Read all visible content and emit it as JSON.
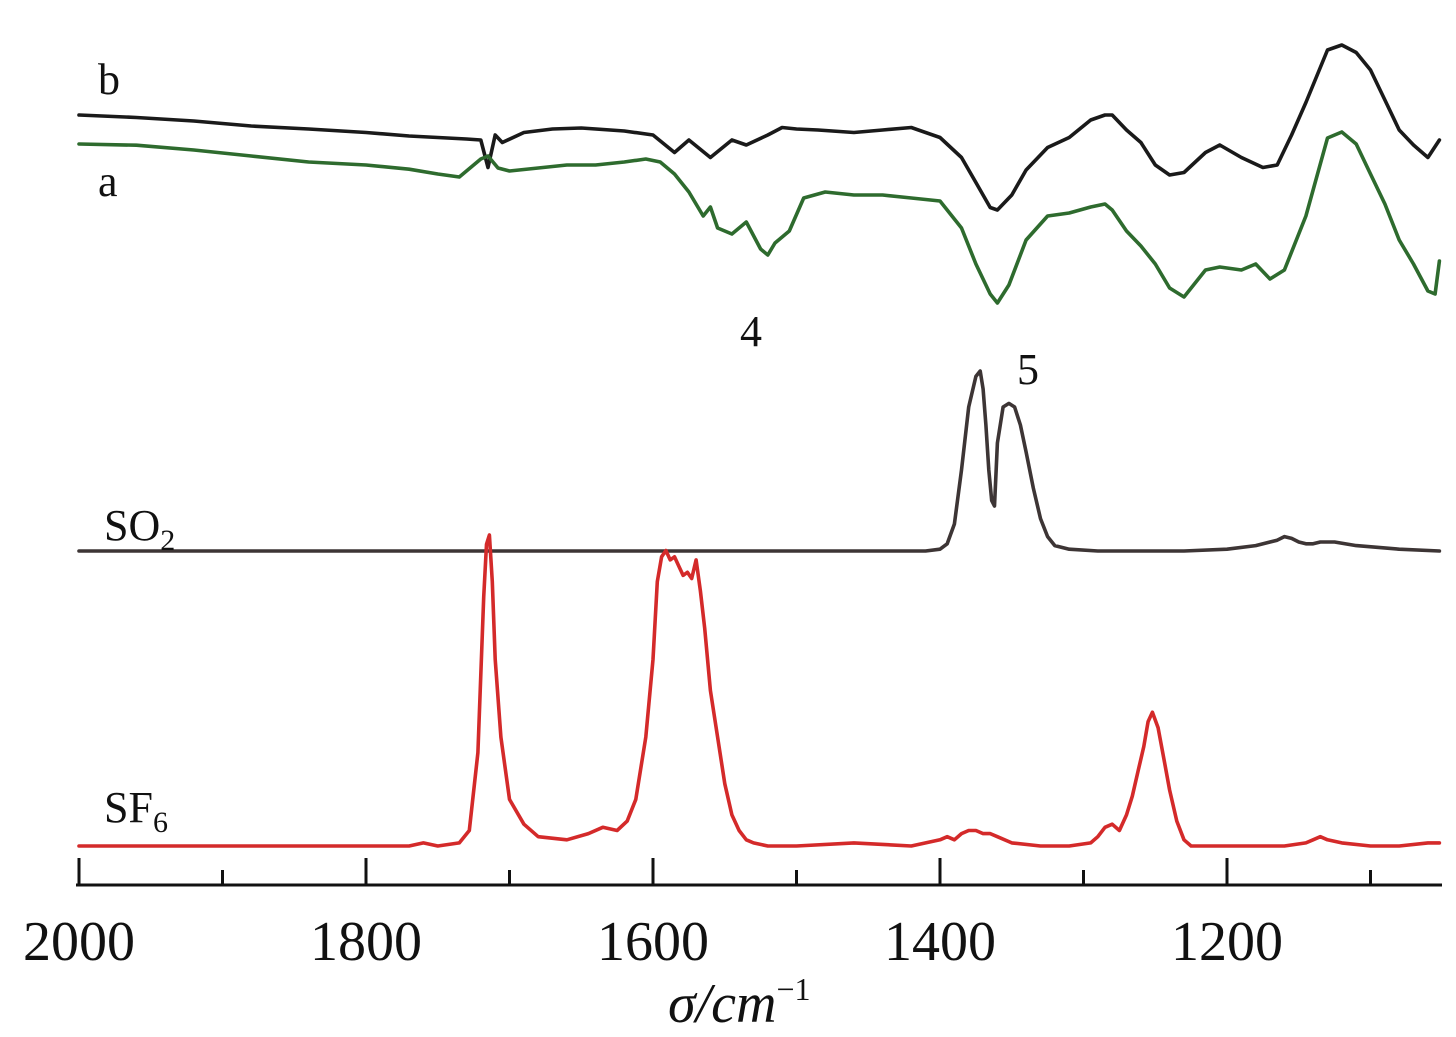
{
  "chart_data": {
    "type": "line",
    "title": "",
    "xlabel": "σ/cm",
    "xlabel_superscript": "−1",
    "ylabel": "",
    "xlim": [
      2000,
      1050
    ],
    "x_reversed": true,
    "x_ticks": [
      2000,
      1800,
      1600,
      1400,
      1200
    ],
    "x_ticks_all": [
      2000,
      1900,
      1800,
      1700,
      1600,
      1500,
      1400,
      1300,
      1200,
      1100
    ],
    "grid": false,
    "legend": "none",
    "series": [
      {
        "name": "b",
        "color": "#1a1a1a",
        "x": [
          2000,
          1960,
          1920,
          1880,
          1840,
          1800,
          1770,
          1750,
          1730,
          1720,
          1715,
          1710,
          1705,
          1690,
          1670,
          1650,
          1620,
          1600,
          1585,
          1575,
          1560,
          1545,
          1535,
          1520,
          1510,
          1500,
          1485,
          1460,
          1440,
          1420,
          1400,
          1385,
          1375,
          1365,
          1360,
          1350,
          1340,
          1325,
          1310,
          1295,
          1285,
          1280,
          1270,
          1260,
          1250,
          1240,
          1230,
          1215,
          1205,
          1190,
          1175,
          1165,
          1155,
          1145,
          1130,
          1120,
          1110,
          1100,
          1090,
          1080,
          1070,
          1060,
          1052
        ],
        "values": [
          0.3,
          0.25,
          0.18,
          0.08,
          0.02,
          -0.05,
          -0.12,
          -0.15,
          -0.18,
          -0.2,
          -0.75,
          -0.1,
          -0.25,
          -0.05,
          0.02,
          0.04,
          -0.02,
          -0.1,
          -0.45,
          -0.2,
          -0.55,
          -0.2,
          -0.3,
          -0.1,
          0.05,
          0.02,
          0.0,
          -0.05,
          0.0,
          0.05,
          -0.15,
          -0.55,
          -1.05,
          -1.55,
          -1.6,
          -1.3,
          -0.8,
          -0.35,
          -0.15,
          0.2,
          0.3,
          0.3,
          0.0,
          -0.25,
          -0.7,
          -0.9,
          -0.85,
          -0.45,
          -0.3,
          -0.55,
          -0.75,
          -0.7,
          -0.1,
          0.55,
          1.6,
          1.7,
          1.55,
          1.2,
          0.6,
          0.0,
          -0.3,
          -0.55,
          -0.2
        ]
      },
      {
        "name": "a",
        "color": "#2e6b2e",
        "x": [
          2000,
          1960,
          1920,
          1880,
          1840,
          1800,
          1770,
          1750,
          1735,
          1720,
          1715,
          1708,
          1700,
          1680,
          1660,
          1640,
          1620,
          1605,
          1595,
          1585,
          1575,
          1565,
          1560,
          1555,
          1545,
          1535,
          1525,
          1520,
          1515,
          1505,
          1495,
          1480,
          1460,
          1440,
          1420,
          1400,
          1385,
          1375,
          1365,
          1360,
          1352,
          1340,
          1325,
          1310,
          1295,
          1285,
          1280,
          1270,
          1260,
          1250,
          1240,
          1230,
          1215,
          1205,
          1190,
          1180,
          1170,
          1160,
          1145,
          1130,
          1120,
          1110,
          1100,
          1090,
          1080,
          1070,
          1060,
          1055,
          1052
        ],
        "values": [
          0.3,
          0.28,
          0.2,
          0.1,
          0.0,
          -0.05,
          -0.12,
          -0.2,
          -0.25,
          0.05,
          0.1,
          -0.1,
          -0.15,
          -0.1,
          -0.05,
          -0.05,
          0.0,
          0.05,
          0.0,
          -0.2,
          -0.5,
          -0.9,
          -0.75,
          -1.1,
          -1.2,
          -1.0,
          -1.45,
          -1.55,
          -1.35,
          -1.15,
          -0.6,
          -0.5,
          -0.55,
          -0.55,
          -0.6,
          -0.65,
          -1.1,
          -1.7,
          -2.2,
          -2.35,
          -2.05,
          -1.3,
          -0.9,
          -0.85,
          -0.75,
          -0.7,
          -0.8,
          -1.15,
          -1.4,
          -1.7,
          -2.1,
          -2.25,
          -1.8,
          -1.75,
          -1.8,
          -1.7,
          -1.95,
          -1.8,
          -0.9,
          0.4,
          0.5,
          0.3,
          -0.2,
          -0.7,
          -1.3,
          -1.7,
          -2.15,
          -2.2,
          -1.65
        ]
      },
      {
        "name": "SO₂",
        "color": "#3d3535",
        "x": [
          2000,
          1800,
          1600,
          1450,
          1410,
          1400,
          1395,
          1390,
          1385,
          1380,
          1375,
          1372,
          1370,
          1368,
          1366,
          1364,
          1362,
          1360,
          1356,
          1352,
          1348,
          1344,
          1340,
          1335,
          1330,
          1325,
          1320,
          1310,
          1290,
          1260,
          1230,
          1200,
          1180,
          1165,
          1160,
          1155,
          1150,
          1145,
          1140,
          1135,
          1125,
          1110,
          1080,
          1052
        ],
        "values": [
          0.0,
          0.0,
          0.0,
          0.0,
          0.0,
          0.01,
          0.04,
          0.15,
          0.45,
          0.8,
          0.97,
          1.0,
          0.9,
          0.7,
          0.45,
          0.28,
          0.25,
          0.6,
          0.8,
          0.82,
          0.8,
          0.7,
          0.55,
          0.35,
          0.18,
          0.08,
          0.03,
          0.01,
          0.0,
          0.0,
          0.0,
          0.01,
          0.03,
          0.06,
          0.08,
          0.07,
          0.05,
          0.04,
          0.04,
          0.05,
          0.05,
          0.03,
          0.01,
          0.0
        ]
      },
      {
        "name": "SF₆",
        "color": "#d42a2a",
        "x": [
          2000,
          1800,
          1770,
          1760,
          1750,
          1735,
          1728,
          1722,
          1718,
          1716,
          1714,
          1712,
          1710,
          1706,
          1700,
          1690,
          1680,
          1660,
          1645,
          1635,
          1625,
          1618,
          1612,
          1605,
          1600,
          1597,
          1594,
          1591,
          1588,
          1585,
          1582,
          1579,
          1576,
          1573,
          1570,
          1567,
          1564,
          1560,
          1555,
          1550,
          1545,
          1540,
          1535,
          1530,
          1520,
          1500,
          1460,
          1420,
          1400,
          1395,
          1390,
          1385,
          1380,
          1375,
          1370,
          1365,
          1360,
          1350,
          1330,
          1310,
          1295,
          1290,
          1285,
          1280,
          1275,
          1270,
          1266,
          1262,
          1258,
          1255,
          1252,
          1248,
          1244,
          1240,
          1235,
          1230,
          1225,
          1220,
          1210,
          1190,
          1160,
          1145,
          1140,
          1135,
          1130,
          1120,
          1100,
          1080,
          1060,
          1052
        ],
        "values": [
          0.0,
          0.0,
          0.0,
          0.01,
          0.0,
          0.01,
          0.05,
          0.3,
          0.8,
          0.97,
          1.0,
          0.85,
          0.6,
          0.35,
          0.15,
          0.07,
          0.03,
          0.02,
          0.04,
          0.06,
          0.05,
          0.08,
          0.15,
          0.35,
          0.6,
          0.85,
          0.93,
          0.95,
          0.92,
          0.93,
          0.9,
          0.87,
          0.88,
          0.86,
          0.92,
          0.82,
          0.7,
          0.5,
          0.35,
          0.2,
          0.1,
          0.05,
          0.02,
          0.01,
          0.0,
          0.0,
          0.01,
          0.0,
          0.02,
          0.03,
          0.02,
          0.04,
          0.05,
          0.05,
          0.04,
          0.04,
          0.03,
          0.01,
          0.0,
          0.0,
          0.01,
          0.03,
          0.06,
          0.07,
          0.05,
          0.1,
          0.16,
          0.24,
          0.32,
          0.4,
          0.43,
          0.38,
          0.28,
          0.18,
          0.08,
          0.02,
          0.0,
          0.0,
          0.0,
          0.0,
          0.0,
          0.01,
          0.02,
          0.03,
          0.02,
          0.01,
          0.0,
          0.0,
          0.01,
          0.01
        ]
      }
    ],
    "annotations": [
      {
        "text": "b",
        "for": "b"
      },
      {
        "text": "a",
        "for": "a"
      },
      {
        "text": "4",
        "at_x": 1532
      },
      {
        "text": "5",
        "at_x": 1336
      },
      {
        "text": "SO",
        "sub": "2",
        "for": "SO₂"
      },
      {
        "text": "SF",
        "sub": "6",
        "for": "SF₆"
      }
    ]
  }
}
